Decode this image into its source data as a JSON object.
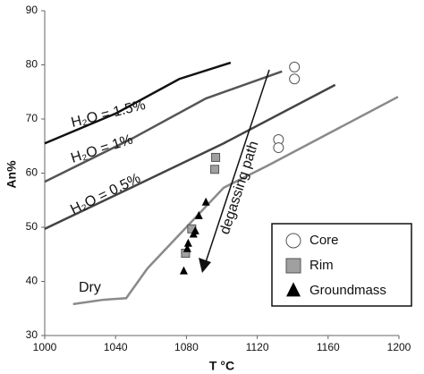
{
  "chart_data": {
    "type": "scatter",
    "xlabel": "T °C",
    "ylabel": "An%",
    "xlim": [
      1000,
      1200
    ],
    "xticks": [
      1000,
      1040,
      1080,
      1120,
      1160,
      1200
    ],
    "ylim": [
      30,
      90
    ],
    "yticks": [
      30,
      40,
      50,
      60,
      70,
      80,
      90
    ],
    "grid": false,
    "legend": "lower right",
    "annotation": "degassing path",
    "curves": [
      {
        "name": "H₂O = 1.5%",
        "color": "#111111",
        "x": [
          1000,
          1040,
          1076,
          1105
        ],
        "y": [
          65.5,
          71,
          77.4,
          80.4
        ]
      },
      {
        "name": "H₂O = 1%",
        "color": "#555555",
        "x": [
          1000,
          1050,
          1091,
          1134
        ],
        "y": [
          58.4,
          66.5,
          73.8,
          78.8
        ]
      },
      {
        "name": "H₂O = 0.5%",
        "color": "#444444",
        "x": [
          1000,
          1050,
          1101,
          1164
        ],
        "y": [
          49.7,
          57.5,
          65.5,
          76.3
        ]
      },
      {
        "name": "Dry",
        "color": "#8a8a8a",
        "x": [
          1016,
          1033,
          1046,
          1058,
          1101,
          1126,
          1199.5
        ],
        "y": [
          35.8,
          36.6,
          36.9,
          42.4,
          57.3,
          61.4,
          74.1
        ]
      }
    ],
    "series": [
      {
        "name": "Core",
        "marker": "circle",
        "color": "#ffffff",
        "x": [
          1141,
          1141,
          1132,
          1132
        ],
        "values": [
          79.6,
          77.4,
          66.2,
          64.7
        ]
      },
      {
        "name": "Rim",
        "marker": "square",
        "color": "#a0a0a0",
        "x": [
          1096.5,
          1096,
          1083,
          1079.5
        ],
        "values": [
          62.9,
          60.7,
          49.7,
          45.2
        ]
      },
      {
        "name": "Groundmass",
        "marker": "triangle",
        "color": "#000000",
        "x": [
          1091,
          1087,
          1085,
          1084,
          1081,
          1080.5,
          1078.5
        ],
        "values": [
          54.6,
          52.1,
          49.3,
          48.7,
          47.0,
          46.0,
          41.9
        ]
      }
    ]
  }
}
